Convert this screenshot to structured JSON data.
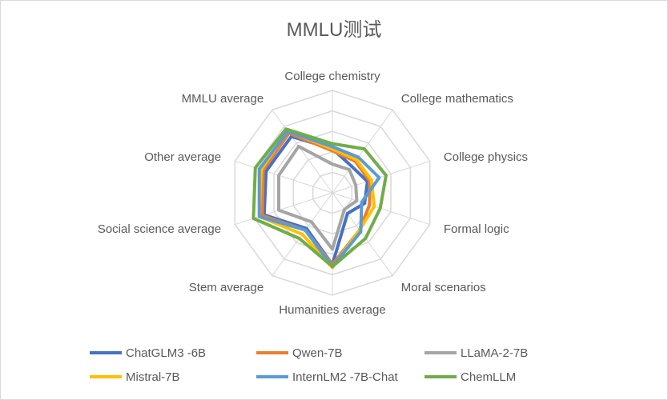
{
  "chart_data": {
    "type": "radar",
    "title": "MMLU测试",
    "categories": [
      "College chemistry",
      "College mathematics",
      "College physics",
      "Formal logic",
      "Moral scenarios",
      "Humanities average",
      "Stem average",
      "Social science average",
      "Other average",
      "MMLU average"
    ],
    "rlim": [
      0,
      100
    ],
    "grid": true,
    "legend_position": "bottom",
    "series": [
      {
        "name": "ChatGLM3 -6B",
        "color": "#4472C4",
        "values": [
          43,
          32,
          36,
          33,
          25,
          70,
          43,
          70,
          68,
          68
        ]
      },
      {
        "name": "Qwen-7B",
        "color": "#ED7D31",
        "values": [
          41,
          38,
          38,
          38,
          45,
          70,
          45,
          72,
          71,
          72
        ]
      },
      {
        "name": "LLaMA-2-7B",
        "color": "#A5A5A5",
        "values": [
          28,
          28,
          24,
          25,
          20,
          55,
          35,
          55,
          55,
          56
        ]
      },
      {
        "name": "Mistral-7B",
        "color": "#FFC000",
        "values": [
          43,
          40,
          40,
          43,
          45,
          73,
          50,
          75,
          73,
          75
        ]
      },
      {
        "name": "InternLM2 -7B-Chat",
        "color": "#5B9BD5",
        "values": [
          45,
          43,
          48,
          30,
          47,
          72,
          45,
          75,
          75,
          74
        ]
      },
      {
        "name": "ChemLLM",
        "color": "#70AD47",
        "values": [
          48,
          53,
          55,
          49,
          55,
          72,
          55,
          81,
          79,
          77
        ]
      }
    ]
  }
}
